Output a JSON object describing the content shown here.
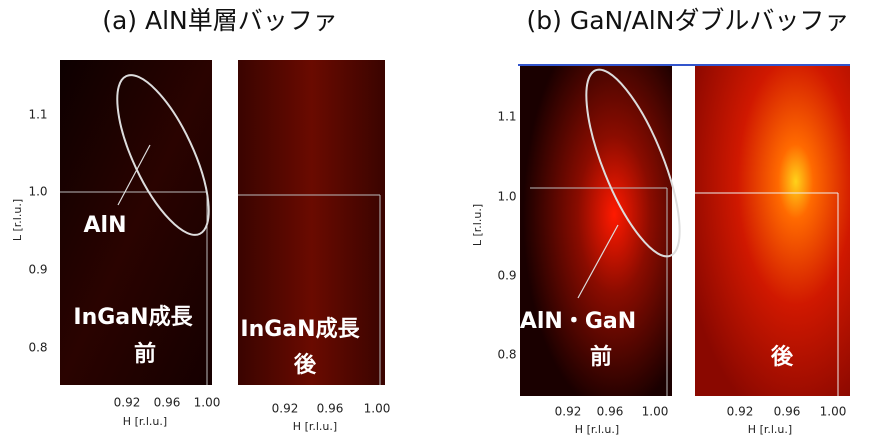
{
  "panel_a": {
    "title": "(a) AlN単層バッファ",
    "y_axis_label": "L [r.l.u.]",
    "y_ticks": [
      "1.1",
      "1.0",
      "0.9",
      "0.8"
    ],
    "left_map": {
      "x_ticks": [
        "0.92",
        "0.96",
        "1.00"
      ],
      "x_axis_label": "H [r.l.u.]",
      "annotations": [
        "AlN",
        "InGaN成長",
        "前"
      ]
    },
    "right_map": {
      "x_ticks": [
        "0.92",
        "0.96",
        "1.00"
      ],
      "x_axis_label": "H [r.l.u.]",
      "annotations": [
        "InGaN成長",
        "後"
      ]
    }
  },
  "panel_b": {
    "title": "(b) GaN/AlNダブルバッファ",
    "y_axis_label": "L [r.l.u.]",
    "y_ticks": [
      "1.1",
      "1.0",
      "0.9",
      "0.8"
    ],
    "left_map": {
      "x_ticks": [
        "0.92",
        "0.96",
        "1.00"
      ],
      "x_axis_label": "H [r.l.u.]",
      "annotations": [
        "AlN・GaN",
        "前"
      ]
    },
    "right_map": {
      "x_ticks": [
        "0.92",
        "0.96",
        "1.00"
      ],
      "x_axis_label": "H [r.l.u.]",
      "annotations": [
        "後"
      ]
    }
  }
}
